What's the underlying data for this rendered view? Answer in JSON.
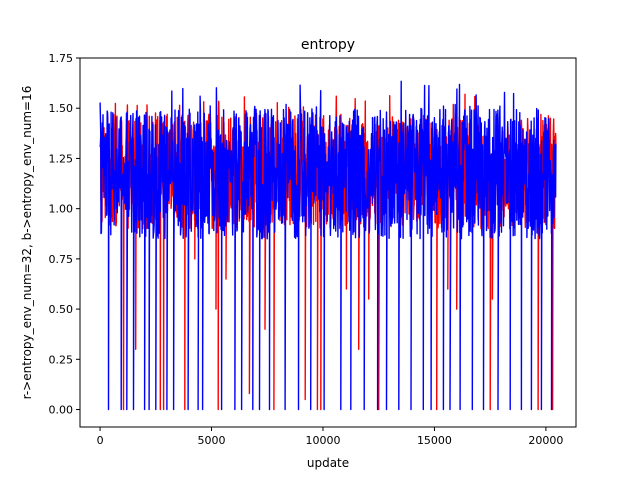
{
  "chart_data": {
    "type": "line",
    "title": "entropy",
    "xlabel": "update",
    "ylabel": "r->entropy_env_num=32, b->entropy_env_num=16",
    "xlim": [
      -900,
      21350
    ],
    "ylim": [
      -0.087,
      1.75
    ],
    "x_ticks": [
      0,
      5000,
      10000,
      15000,
      20000
    ],
    "y_ticks": [
      0.0,
      0.25,
      0.5,
      0.75,
      1.0,
      1.25,
      1.5,
      1.75
    ],
    "x_tick_labels": [
      "0",
      "5000",
      "10000",
      "15000",
      "20000"
    ],
    "y_tick_labels": [
      "0.00",
      "0.25",
      "0.50",
      "0.75",
      "1.00",
      "1.25",
      "1.50",
      "1.75"
    ],
    "grid": false,
    "legend": null,
    "series": [
      {
        "color": "#ff0000",
        "x_range": [
          0,
          20450
        ],
        "baseline_min": 0.9,
        "baseline_max": 1.47,
        "max": 1.57,
        "min": 0.0,
        "dips": [
          {
            "x": 1050,
            "y": 0.0
          },
          {
            "x": 1600,
            "y": 0.3
          },
          {
            "x": 2700,
            "y": 0.0
          },
          {
            "x": 2850,
            "y": 0.0
          },
          {
            "x": 3800,
            "y": 0.0
          },
          {
            "x": 4250,
            "y": 0.75
          },
          {
            "x": 5200,
            "y": 0.5
          },
          {
            "x": 5300,
            "y": 0.0
          },
          {
            "x": 5650,
            "y": 0.65
          },
          {
            "x": 6700,
            "y": 0.08
          },
          {
            "x": 7400,
            "y": 0.4
          },
          {
            "x": 7800,
            "y": 0.0
          },
          {
            "x": 9200,
            "y": 0.05
          },
          {
            "x": 9750,
            "y": 0.0
          },
          {
            "x": 9900,
            "y": 0.0
          },
          {
            "x": 11050,
            "y": 0.6
          },
          {
            "x": 11600,
            "y": 0.3
          },
          {
            "x": 12050,
            "y": 0.55
          },
          {
            "x": 12500,
            "y": 0.0
          },
          {
            "x": 15100,
            "y": 0.0
          },
          {
            "x": 15600,
            "y": 0.6
          },
          {
            "x": 16000,
            "y": 0.5
          },
          {
            "x": 17500,
            "y": 0.0
          },
          {
            "x": 17600,
            "y": 0.55
          },
          {
            "x": 19650,
            "y": 0.0
          },
          {
            "x": 20300,
            "y": 0.0
          }
        ]
      },
      {
        "color": "#0000ff",
        "x_range": [
          0,
          20450
        ],
        "baseline_min": 0.85,
        "baseline_max": 1.5,
        "max": 1.67,
        "min": 0.0,
        "dips": [
          {
            "x": 380,
            "y": 0.0
          },
          {
            "x": 950,
            "y": 0.0
          },
          {
            "x": 1200,
            "y": 0.0
          },
          {
            "x": 1500,
            "y": 0.0
          },
          {
            "x": 2000,
            "y": 0.0
          },
          {
            "x": 2200,
            "y": 0.0
          },
          {
            "x": 2500,
            "y": 0.0
          },
          {
            "x": 3000,
            "y": 0.0
          },
          {
            "x": 3300,
            "y": 0.0
          },
          {
            "x": 3950,
            "y": 0.0
          },
          {
            "x": 4400,
            "y": 0.0
          },
          {
            "x": 4600,
            "y": 0.0
          },
          {
            "x": 5450,
            "y": 0.0
          },
          {
            "x": 6050,
            "y": 0.0
          },
          {
            "x": 6350,
            "y": 0.0
          },
          {
            "x": 6850,
            "y": 0.0
          },
          {
            "x": 7150,
            "y": 0.0
          },
          {
            "x": 7600,
            "y": 0.0
          },
          {
            "x": 8300,
            "y": 0.0
          },
          {
            "x": 8900,
            "y": 0.0
          },
          {
            "x": 9450,
            "y": 0.0
          },
          {
            "x": 10050,
            "y": 0.0
          },
          {
            "x": 10800,
            "y": 0.0
          },
          {
            "x": 11250,
            "y": 0.0
          },
          {
            "x": 11850,
            "y": 0.0
          },
          {
            "x": 12450,
            "y": 0.0
          },
          {
            "x": 12850,
            "y": 0.0
          },
          {
            "x": 13400,
            "y": 0.0
          },
          {
            "x": 13950,
            "y": 0.0
          },
          {
            "x": 14500,
            "y": 0.0
          },
          {
            "x": 14850,
            "y": 0.0
          },
          {
            "x": 15400,
            "y": 0.0
          },
          {
            "x": 15700,
            "y": 0.0
          },
          {
            "x": 16150,
            "y": 0.0
          },
          {
            "x": 16700,
            "y": 0.0
          },
          {
            "x": 17200,
            "y": 0.0
          },
          {
            "x": 17850,
            "y": 0.0
          },
          {
            "x": 18400,
            "y": 0.0
          },
          {
            "x": 18900,
            "y": 0.0
          },
          {
            "x": 19350,
            "y": 0.0
          },
          {
            "x": 19800,
            "y": 0.0
          },
          {
            "x": 20250,
            "y": 0.0
          }
        ]
      }
    ]
  }
}
